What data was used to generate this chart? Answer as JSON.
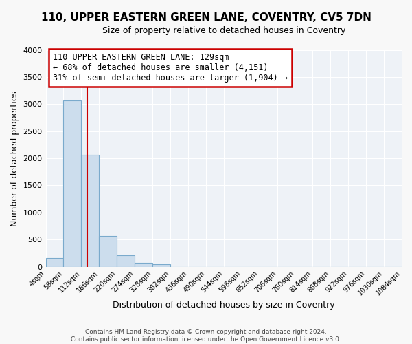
{
  "title1": "110, UPPER EASTERN GREEN LANE, COVENTRY, CV5 7DN",
  "title2": "Size of property relative to detached houses in Coventry",
  "xlabel": "Distribution of detached houses by size in Coventry",
  "ylabel": "Number of detached properties",
  "bin_edges": [
    4,
    58,
    112,
    166,
    220,
    274,
    328,
    382,
    436,
    490,
    544,
    598,
    652,
    706,
    760,
    814,
    868,
    922,
    976,
    1030,
    1084
  ],
  "bar_heights": [
    155,
    3070,
    2065,
    570,
    205,
    65,
    40,
    0,
    0,
    0,
    0,
    0,
    0,
    0,
    0,
    0,
    0,
    0,
    0,
    0
  ],
  "bar_color": "#ccdded",
  "bar_edgecolor": "#7aaacc",
  "property_size": 129,
  "vline_color": "#cc0000",
  "annotation_line1": "110 UPPER EASTERN GREEN LANE: 129sqm",
  "annotation_line2": "← 68% of detached houses are smaller (4,151)",
  "annotation_line3": "31% of semi-detached houses are larger (1,904) →",
  "annotation_box_edgecolor": "#cc0000",
  "annotation_fontsize": 8.5,
  "ylim": [
    0,
    4000
  ],
  "yticks": [
    0,
    500,
    1000,
    1500,
    2000,
    2500,
    3000,
    3500,
    4000
  ],
  "footer1": "Contains HM Land Registry data © Crown copyright and database right 2024.",
  "footer2": "Contains public sector information licensed under the Open Government Licence v3.0.",
  "bg_color": "#f8f8f8",
  "plot_bg_color": "#eef2f7"
}
